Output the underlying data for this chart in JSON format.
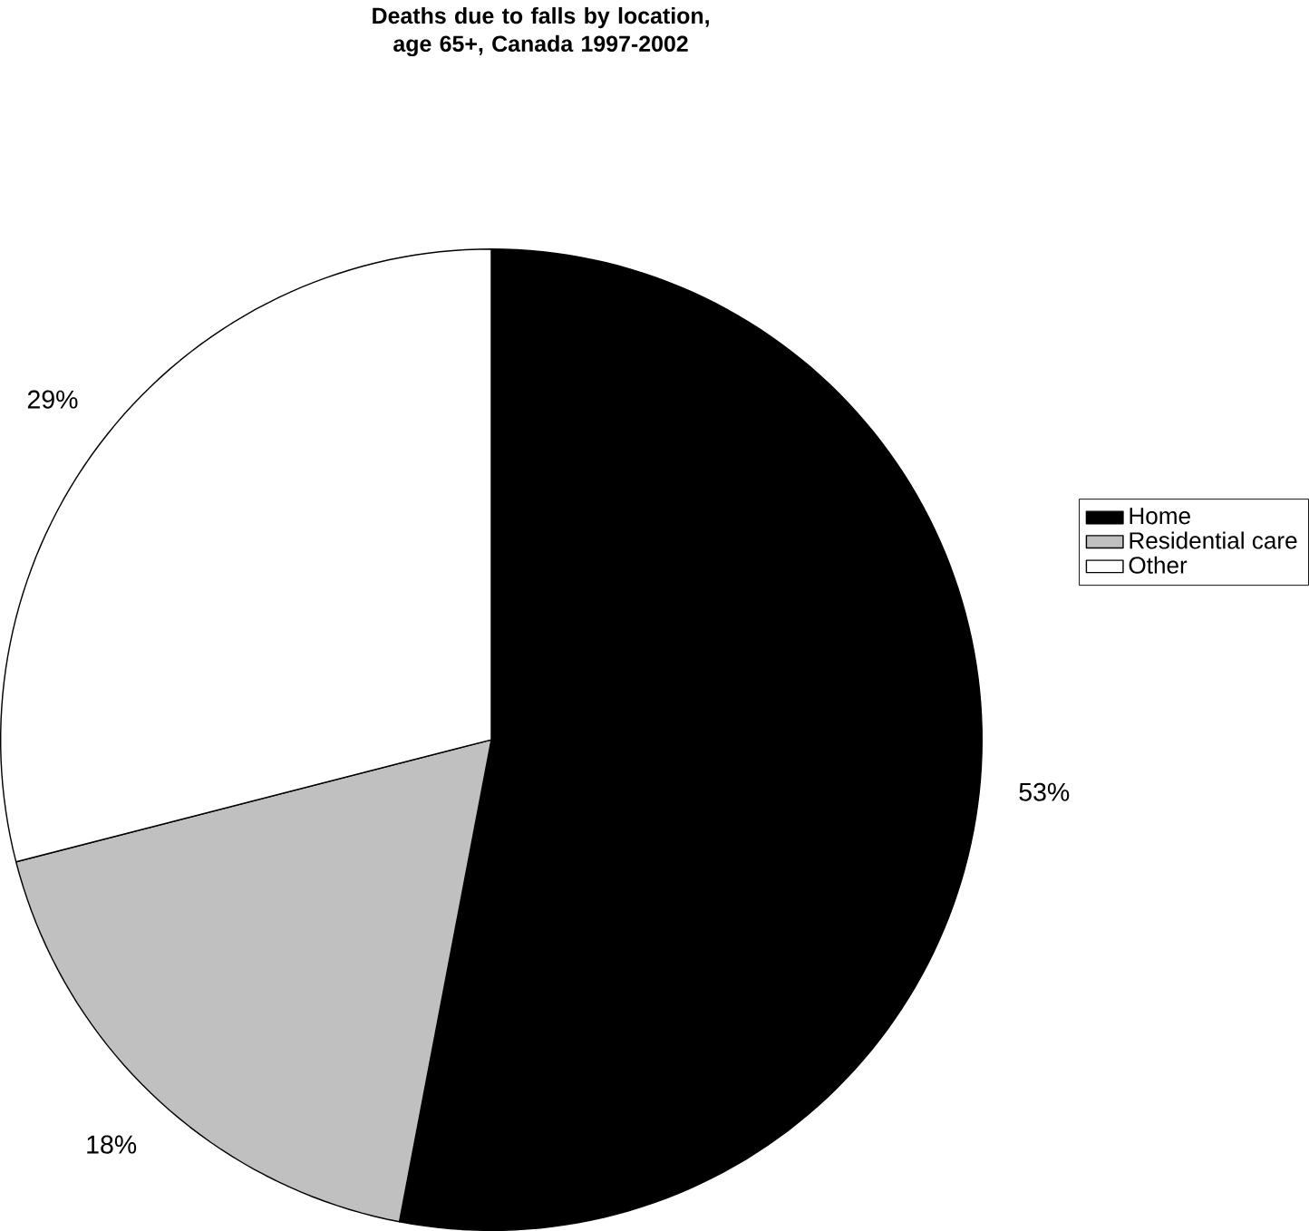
{
  "chart_data": {
    "type": "pie",
    "title": "Deaths due to falls by location, age 65+, Canada 1997-2002",
    "categories": [
      "Home",
      "Residential care",
      "Other"
    ],
    "values": [
      53,
      18,
      29
    ],
    "colors": [
      "#000000",
      "#c0c0c0",
      "#ffffff"
    ],
    "value_labels": [
      "53%",
      "18%",
      "29%"
    ],
    "legend": "right"
  }
}
